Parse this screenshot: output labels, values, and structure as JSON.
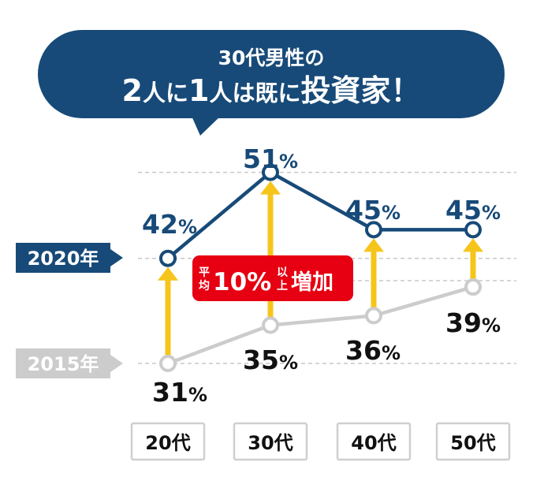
{
  "banner": {
    "line1": "30代男性の",
    "line2_segments": [
      {
        "text": "2",
        "size": "big"
      },
      {
        "text": "人に",
        "size": "mid"
      },
      {
        "text": "1",
        "size": "big"
      },
      {
        "text": "人は既に",
        "size": "mid"
      },
      {
        "text": "投資家",
        "size": "big"
      },
      {
        "text": "！",
        "size": "big"
      }
    ]
  },
  "colors": {
    "navy": "#174a78",
    "gray": "#cccccc",
    "arrow": "#f6c51b",
    "badge_red": "#e60012",
    "text_dark": "#111111",
    "grid": "#c8c8c8"
  },
  "badge": {
    "small_top": "平",
    "small_bottom": "均",
    "main": "10%",
    "small2_top": "以",
    "small2_bottom": "上",
    "tail": "増加"
  },
  "chart_data": {
    "type": "line",
    "categories": [
      "20代",
      "30代",
      "40代",
      "50代"
    ],
    "series": [
      {
        "name": "2020年",
        "values": [
          42,
          51,
          45,
          45
        ],
        "color": "#174a78"
      },
      {
        "name": "2015年",
        "values": [
          31,
          35,
          36,
          39
        ],
        "color": "#cccccc"
      }
    ],
    "value_suffix": "%",
    "grid": true,
    "legend": "left"
  }
}
